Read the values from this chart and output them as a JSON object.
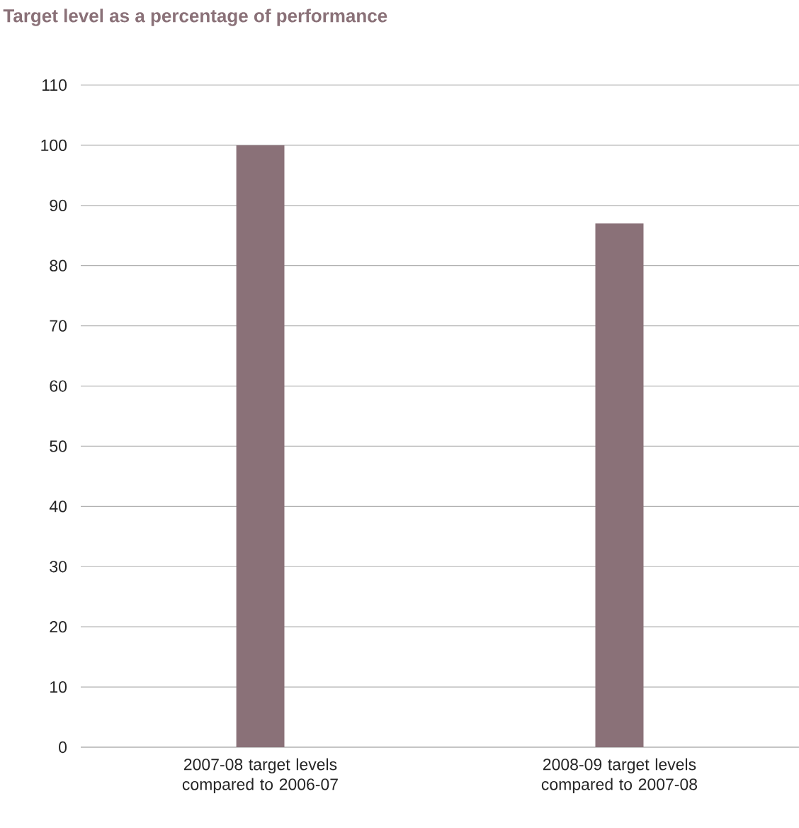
{
  "chart_data": {
    "type": "bar",
    "title": "Target level as a percentage of performance",
    "categories": [
      "2007-08 target levels compared to 2006-07",
      "2008-09 target levels compared to 2007-08"
    ],
    "values": [
      100,
      87
    ],
    "color": "#8a7178",
    "ylim": [
      0,
      110
    ],
    "yticks": [
      0,
      10,
      20,
      30,
      40,
      50,
      60,
      70,
      80,
      90,
      100,
      110
    ],
    "grid": "y"
  }
}
